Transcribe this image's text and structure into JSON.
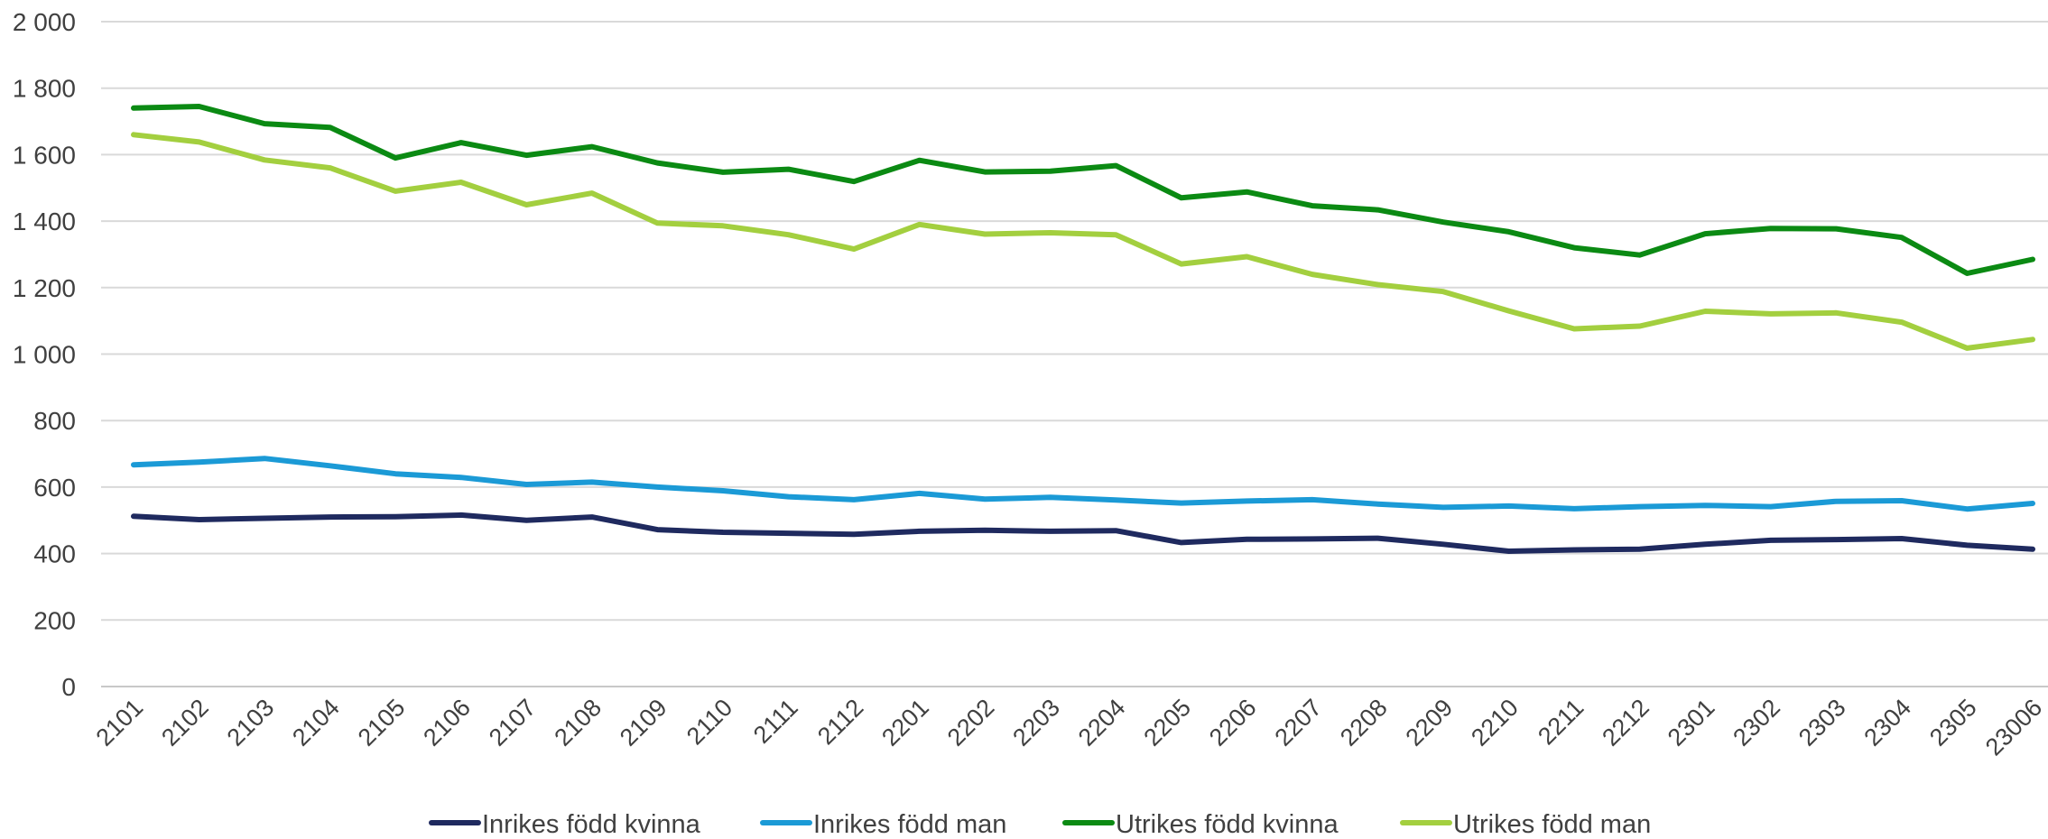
{
  "chart_data": {
    "type": "line",
    "title": "",
    "xlabel": "",
    "ylabel": "",
    "ylim": [
      0,
      2000
    ],
    "yticks": [
      "0",
      "200",
      "400",
      "600",
      "800",
      "1 000",
      "1 200",
      "1 400",
      "1 600",
      "1 800",
      "2 000"
    ],
    "grid": true,
    "legend_position": "bottom",
    "categories": [
      "2101",
      "2102",
      "2103",
      "2104",
      "2105",
      "2106",
      "2107",
      "2108",
      "2109",
      "2110",
      "2111",
      "2112",
      "2201",
      "2202",
      "2203",
      "2204",
      "2205",
      "2206",
      "2207",
      "2208",
      "2209",
      "2210",
      "2211",
      "2212",
      "2301",
      "2302",
      "2303",
      "2304",
      "2305",
      "23006"
    ],
    "series": [
      {
        "name": "Inrikes född kvinna",
        "color": "#1f2a5f",
        "values": [
          512,
          502,
          506,
          510,
          511,
          516,
          500,
          510,
          472,
          464,
          461,
          458,
          467,
          470,
          467,
          469,
          433,
          443,
          444,
          446,
          428,
          407,
          411,
          413,
          428,
          440,
          442,
          445,
          425,
          413
        ]
      },
      {
        "name": "Inrikes född man",
        "color": "#1b9ad6",
        "values": [
          667,
          675,
          686,
          664,
          640,
          629,
          608,
          615,
          600,
          589,
          571,
          562,
          581,
          564,
          569,
          561,
          552,
          558,
          562,
          549,
          539,
          543,
          535,
          541,
          545,
          541,
          557,
          559,
          534,
          551
        ]
      },
      {
        "name": "Utrikes född kvinna",
        "color": "#0b8a13",
        "values": [
          1740,
          1745,
          1693,
          1682,
          1590,
          1636,
          1598,
          1624,
          1575,
          1547,
          1556,
          1519,
          1583,
          1548,
          1550,
          1567,
          1470,
          1488,
          1446,
          1434,
          1397,
          1368,
          1320,
          1298,
          1362,
          1378,
          1377,
          1351,
          1243,
          1285
        ]
      },
      {
        "name": "Utrikes född man",
        "color": "#a3cf3f",
        "values": [
          1660,
          1638,
          1584,
          1560,
          1490,
          1517,
          1449,
          1484,
          1394,
          1386,
          1359,
          1316,
          1390,
          1361,
          1365,
          1359,
          1271,
          1293,
          1240,
          1209,
          1188,
          1130,
          1076,
          1084,
          1129,
          1121,
          1124,
          1096,
          1018,
          1044
        ]
      }
    ]
  }
}
